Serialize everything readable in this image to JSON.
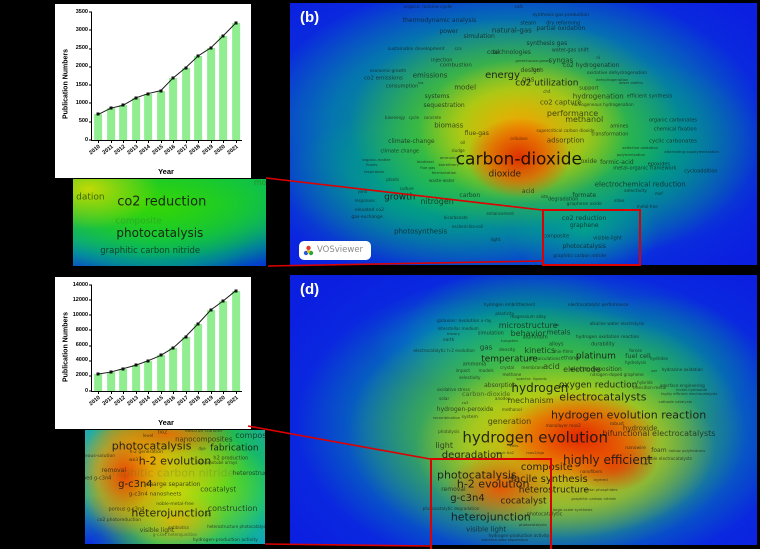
{
  "colors": {
    "bar_fill": "#90ee90",
    "highlight_red": "#dd0000",
    "map_base_blue": "#0b1fe0",
    "inset_bg": "#ffffff"
  },
  "panel_b": {
    "label": "(b)"
  },
  "panel_d": {
    "label": "(d)"
  },
  "vosviewer": {
    "label": "VOSviewer"
  },
  "chart_data": [
    {
      "type": "bar",
      "title": "",
      "ylabel": "Publication Numbers",
      "xlabel": "Year",
      "categories": [
        "2010",
        "2011",
        "2012",
        "2013",
        "2014",
        "2015",
        "2016",
        "2017",
        "2018",
        "2019",
        "2020",
        "2021"
      ],
      "values": [
        700,
        870,
        950,
        1150,
        1270,
        1350,
        1700,
        1980,
        2300,
        2520,
        2850,
        3200
      ],
      "ylim": [
        0,
        3500
      ],
      "ytick": 500,
      "grid": false,
      "overlay_line": true
    },
    {
      "type": "bar",
      "title": "",
      "ylabel": "Publication Numbers",
      "xlabel": "Year",
      "categories": [
        "2010",
        "2011",
        "2012",
        "2013",
        "2014",
        "2015",
        "2016",
        "2017",
        "2018",
        "2019",
        "2020",
        "2021"
      ],
      "values": [
        2250,
        2500,
        2950,
        3400,
        4000,
        4700,
        5700,
        7200,
        8900,
        10700,
        11900,
        13250
      ],
      "ylim": [
        0,
        14000
      ],
      "ytick": 2000,
      "grid": false,
      "overlay_line": true
    }
  ],
  "map_b_words": [
    [
      "organic rankine cycle",
      29.5,
      2,
      4.5
    ],
    [
      "sofc",
      49,
      2,
      4.5
    ],
    [
      "thermodynamic analysis",
      32,
      7,
      6
    ],
    [
      "synthesis gas-production",
      58,
      5,
      4.5
    ],
    [
      "steam",
      51,
      8,
      5
    ],
    [
      "dry reforming",
      58.5,
      8,
      5
    ],
    [
      "power",
      34,
      11,
      6
    ],
    [
      "natural-gas",
      47.5,
      10.5,
      7
    ],
    [
      "partial oxidation",
      58,
      10,
      6
    ],
    [
      "simulation",
      40.5,
      13,
      6
    ],
    [
      "synthesis gas",
      55,
      15.5,
      6
    ],
    [
      "sustainable development",
      27,
      18,
      4.5
    ],
    [
      "ccs",
      36,
      18,
      4.5
    ],
    [
      "coal",
      43.5,
      19,
      6
    ],
    [
      "technologies",
      47.5,
      19,
      6
    ],
    [
      "water-gas shift",
      60,
      18.5,
      5
    ],
    [
      "greenhouse-gases",
      52,
      22,
      3.8
    ],
    [
      "injection",
      32.5,
      22,
      5
    ],
    [
      "ni",
      66,
      21,
      4
    ],
    [
      "combustion",
      35.5,
      24,
      5.5
    ],
    [
      "syngas",
      58,
      22,
      7
    ],
    [
      "economic-growth",
      21,
      26,
      4.2
    ],
    [
      "emissions",
      30,
      28,
      7
    ],
    [
      "energy",
      45.5,
      28,
      10
    ],
    [
      "design",
      51.5,
      26,
      6
    ],
    [
      "fuels",
      53,
      26,
      5
    ],
    [
      "co2 hydrogenation",
      64.5,
      24,
      6
    ],
    [
      "co2 emissions",
      20,
      29,
      5.5
    ],
    [
      "gas",
      51,
      29.5,
      7
    ],
    [
      "oxidative dehydrogenation",
      70,
      27,
      4.5
    ],
    [
      "dehydrogenation",
      69,
      29.5,
      3.8
    ],
    [
      "lower olefins",
      73,
      30.5,
      3.8
    ],
    [
      "consumption",
      24,
      32,
      5
    ],
    [
      "lca",
      28,
      30.5,
      3.8
    ],
    [
      "model",
      37.5,
      32.5,
      7
    ],
    [
      "co2 utilization",
      55,
      31,
      9
    ],
    [
      "ch4",
      55,
      34,
      4
    ],
    [
      "support",
      64,
      33,
      5
    ],
    [
      "hydrogenation",
      66,
      36,
      7
    ],
    [
      "efficient synthesis",
      77,
      36,
      5
    ],
    [
      "systems",
      31.5,
      36,
      6
    ],
    [
      "co2 capture",
      58,
      38,
      7
    ],
    [
      "sequestration",
      33,
      39.5,
      6
    ],
    [
      "homogeneous hydrogenation",
      67,
      39,
      4.2
    ],
    [
      "performance",
      60.5,
      42.5,
      8
    ],
    [
      "bioenergy",
      22.5,
      44,
      4
    ],
    [
      "cycle",
      26.5,
      44,
      4
    ],
    [
      "concrete",
      30.5,
      44,
      4
    ],
    [
      "biomass",
      34,
      47,
      7
    ],
    [
      "methanol",
      63,
      44.5,
      8
    ],
    [
      "flue-gas",
      40,
      50,
      6
    ],
    [
      "supercritical carbon dioxide",
      59,
      49,
      4.2
    ],
    [
      "organic carbonates",
      82,
      45,
      5
    ],
    [
      "chemical fixation",
      82.5,
      48.5,
      5
    ],
    [
      "amines",
      70.5,
      47.5,
      5
    ],
    [
      "transformation",
      68.5,
      50.5,
      5
    ],
    [
      "climate-change",
      26,
      53,
      6
    ],
    [
      "oil",
      37,
      53.5,
      4.2
    ],
    [
      "cellulose",
      49,
      52,
      4,
      0.7,
      "#3a1000"
    ],
    [
      "adsorption",
      59,
      52.5,
      7
    ],
    [
      "cyclic carbonates",
      82,
      53,
      5.5
    ],
    [
      "climate change",
      23.5,
      57,
      5
    ],
    [
      "sludge",
      36,
      56.5,
      4
    ],
    [
      "selective oxidation",
      75,
      55.5,
      3.8
    ],
    [
      "alternating copolymerization",
      86,
      57,
      3.8
    ],
    [
      "polymerization",
      73,
      58,
      3.8
    ],
    [
      "organic-matter",
      18.5,
      60,
      3.8
    ],
    [
      "biodiesel",
      29,
      60.5,
      3.8
    ],
    [
      "ammonia",
      34,
      59,
      3.8
    ],
    [
      "carbon-dioxide",
      49,
      60,
      17,
      0.92,
      "#100800"
    ],
    [
      "fluxes",
      17.5,
      62,
      3.8
    ],
    [
      "flue gas",
      29.5,
      63,
      3.8
    ],
    [
      "biorefinery",
      34,
      62,
      3.8
    ],
    [
      "oxide",
      64,
      60.5,
      6
    ],
    [
      "formic-acid",
      70,
      61,
      6
    ],
    [
      "epoxides",
      79,
      62,
      5
    ],
    [
      "respiration",
      18,
      64.5,
      3.8
    ],
    [
      "fermentation",
      33,
      65,
      3.8
    ],
    [
      "dioxide",
      46,
      65.5,
      9
    ],
    [
      "metal-organic framework",
      76,
      63.5,
      5
    ],
    [
      "cycloaddition",
      88,
      64.5,
      5
    ],
    [
      "plants",
      22,
      67.5,
      4.2
    ],
    [
      "waste-water",
      32.5,
      68,
      4.2
    ],
    [
      "electrochemical reduction",
      75,
      69.5,
      7
    ],
    [
      "culture",
      25,
      71,
      4
    ],
    [
      "yield",
      15.5,
      72,
      4
    ],
    [
      "carbon",
      38.5,
      73.5,
      6
    ],
    [
      "acid",
      51,
      72,
      6
    ],
    [
      "site",
      54.5,
      74,
      4
    ],
    [
      "selectivity",
      74,
      72,
      4.5
    ],
    [
      "mof",
      79,
      73,
      4
    ],
    [
      "responses",
      16,
      75.5,
      4
    ],
    [
      "growth",
      23.5,
      74.5,
      9
    ],
    [
      "nitrogen",
      31.5,
      76,
      8
    ],
    [
      "degradation",
      58.5,
      75,
      5
    ],
    [
      "formate",
      63,
      73.5,
      6
    ],
    [
      "graphene oxide",
      63,
      77,
      4.5
    ],
    [
      "sites",
      70.5,
      76,
      4.5
    ],
    [
      "metal-free",
      76.5,
      78,
      4
    ],
    [
      "elevated co2",
      17,
      79.5,
      4.5
    ],
    [
      "gas-exchange",
      16.5,
      82,
      4.5
    ],
    [
      "bicarbonate",
      35.5,
      82,
      4
    ],
    [
      "enhancement",
      45,
      80.5,
      4
    ],
    [
      "escherichia-coli",
      38,
      85.5,
      4
    ],
    [
      "co2 reduction",
      63,
      82,
      6.5
    ],
    [
      "graphene",
      63,
      85,
      6
    ],
    [
      "photosynthesis",
      28,
      87.5,
      7
    ],
    [
      "composite",
      57,
      89.5,
      5
    ],
    [
      "visible-light",
      68,
      90,
      5
    ],
    [
      "photocatalysis",
      63,
      93,
      6
    ],
    [
      "light",
      44,
      91,
      4.5
    ],
    [
      "graphitic carbon nitride",
      62,
      97,
      4.5
    ]
  ],
  "map_d_words": [
    [
      "hydrogen embrittlement",
      47,
      11,
      4.2
    ],
    [
      "electrocatalytic performance",
      66,
      11,
      4.2
    ],
    [
      "plasticity",
      46,
      14.5,
      4.2
    ],
    [
      "magnesium alloy",
      51,
      15.5,
      4.2
    ],
    [
      "microstructure",
      51,
      19,
      8
    ],
    [
      "behavior",
      51,
      22,
      8
    ],
    [
      "galaxies: evolution",
      36,
      17.5,
      4.5
    ],
    [
      "x-ray",
      42,
      17,
      4.2
    ],
    [
      "interstellar medium",
      36,
      20,
      4.2
    ],
    [
      "history",
      35,
      22,
      3.8
    ],
    [
      "earth",
      34,
      24,
      4.2
    ],
    [
      "simulation",
      43,
      22,
      5
    ],
    [
      "nio",
      57,
      18.5,
      3.8
    ],
    [
      "alkaline water electrolysis",
      70,
      18,
      4.2
    ],
    [
      "metals",
      57.5,
      21.5,
      7
    ],
    [
      "hydrogen oxidation reaction",
      68,
      23.5,
      4.5
    ],
    [
      "tungsten",
      47,
      24.5,
      3.8
    ],
    [
      "aluminum",
      52.5,
      23.5,
      5
    ],
    [
      "durability",
      67,
      26,
      5
    ],
    [
      "gas",
      42,
      27,
      7
    ],
    [
      "electrocatalytic h-2 evolution",
      33,
      28,
      4.2
    ],
    [
      "density",
      46.5,
      28,
      4.5
    ],
    [
      "kinetics",
      53.5,
      28,
      8
    ],
    [
      "alloys",
      57,
      26,
      5
    ],
    [
      "thin-films",
      58.5,
      28.5,
      4.2
    ],
    [
      "forces",
      74,
      28,
      4.2
    ],
    [
      "platinum",
      65.5,
      30.5,
      9
    ],
    [
      "fuel cell",
      74.5,
      30,
      6.5
    ],
    [
      "hydrides",
      79,
      31,
      4.2
    ],
    [
      "temperature",
      47,
      31.5,
      9
    ],
    [
      "dft calculations",
      54.5,
      31,
      4.2
    ],
    [
      "ethanol",
      60,
      31,
      5
    ],
    [
      "hydrolysis",
      74,
      32.5,
      4.2
    ],
    [
      "ammonia",
      39.5,
      33.5,
      5
    ],
    [
      "crystal",
      46.5,
      34.5,
      4.2
    ],
    [
      "membrane",
      52,
      34.5,
      4.2
    ],
    [
      "acid",
      56,
      34,
      8
    ],
    [
      "electrode",
      62.5,
      35,
      8
    ],
    [
      "electrodeposition",
      65.5,
      35,
      6
    ],
    [
      "hydrazine oxidation",
      84,
      35,
      4.2
    ],
    [
      "impact",
      37,
      35.5,
      4.2
    ],
    [
      "models",
      42,
      35.5,
      4.2
    ],
    [
      "methane",
      47.5,
      37,
      4.2
    ],
    [
      "nitrogen-doped graphene",
      70,
      37,
      4.2
    ],
    [
      "oer",
      78,
      35.5,
      3.8
    ],
    [
      "selectivity",
      38.5,
      38,
      4.2
    ],
    [
      "spectra",
      50,
      38.5,
      3.8
    ],
    [
      "ligands",
      53.5,
      38.5,
      3.8
    ],
    [
      "hybrids",
      76,
      40,
      4.2
    ],
    [
      "interface engineering",
      84,
      41,
      4.2
    ],
    [
      "absorption",
      45,
      41,
      6
    ],
    [
      "oxidative stress",
      35,
      42.5,
      4.2
    ],
    [
      "oxygen reduction",
      66,
      41,
      9
    ],
    [
      "transition-metal",
      77,
      42,
      4.2
    ],
    [
      "nickel-hydroxide",
      86,
      42.5,
      3.8
    ],
    [
      "carbon-dioxide",
      42,
      44,
      6.5,
      0.55
    ],
    [
      "hydrogen",
      53.5,
      42,
      12
    ],
    [
      "highly efficient electrocatalysts",
      85.5,
      44.5,
      3.6
    ],
    [
      "electrocatalysts",
      67,
      45,
      11
    ],
    [
      "solar",
      33,
      46,
      4.2
    ],
    [
      "anodes",
      45.5,
      46,
      4.2
    ],
    [
      "mechanism",
      51.5,
      46.5,
      8
    ],
    [
      "cathode catalysts",
      82.5,
      47,
      3.8
    ],
    [
      "co2",
      37.5,
      47.5,
      3.8
    ],
    [
      "hydrogen-peroxide",
      37.5,
      50,
      6
    ],
    [
      "methanol",
      47.5,
      50,
      4.2
    ],
    [
      "hydrogen evolution reaction",
      72.5,
      52,
      11
    ],
    [
      "recombination",
      33.5,
      53,
      3.8
    ],
    [
      "system",
      38.5,
      53,
      4.5
    ],
    [
      "generation",
      47,
      54.5,
      8
    ],
    [
      "monolayer mos2",
      58.5,
      56,
      4.2
    ],
    [
      "robust",
      70,
      55.5,
      4.5
    ],
    [
      "hydroxide",
      75,
      57,
      7
    ],
    [
      "bifunctional electrocatalysts",
      79,
      59,
      8
    ],
    [
      "hydrogen evolution",
      52.5,
      60.5,
      15
    ],
    [
      "photolysis",
      34,
      58,
      4.2
    ],
    [
      "nanowire",
      74,
      64.5,
      4.5
    ],
    [
      "foam",
      79,
      65,
      6
    ],
    [
      "hollow polyhedrons",
      85,
      65,
      3.8
    ],
    [
      "light",
      33,
      63.5,
      8
    ],
    [
      "cells",
      48,
      63.5,
      3.8
    ],
    [
      "black tio2",
      46,
      66,
      3.8
    ],
    [
      "mos2/rgo",
      52.5,
      66,
      3.8
    ],
    [
      "highly efficient",
      68,
      68.5,
      12
    ],
    [
      "degradation",
      39,
      67,
      10
    ],
    [
      "stable electrocatalysts",
      81,
      68,
      4.2
    ],
    [
      "cop",
      76,
      70,
      3.8
    ],
    [
      "composite",
      55,
      71.5,
      10
    ],
    [
      "nanofibers",
      64.5,
      73,
      4.2
    ],
    [
      "photocatalysis",
      40,
      74,
      11
    ],
    [
      "dyes",
      47,
      75,
      3.8
    ],
    [
      "facile synthesis",
      55.5,
      76,
      10
    ],
    [
      "h-2 evolution",
      43.5,
      77.5,
      11
    ],
    [
      "removal",
      35,
      79.5,
      6
    ],
    [
      "heterostructure",
      56.5,
      80,
      9
    ],
    [
      "layered",
      66.5,
      76,
      3.8
    ],
    [
      "metal phosphides",
      66.5,
      79.5,
      3.8
    ],
    [
      "g-c3n4",
      38,
      83,
      10
    ],
    [
      "cocatalyst",
      50,
      84,
      9
    ],
    [
      "graphitic carbon nitride",
      65,
      83,
      3.8
    ],
    [
      "photocatalytic degradation",
      34.5,
      86.5,
      4.2
    ],
    [
      "large-scale synthesis",
      60.5,
      87,
      3.8
    ],
    [
      "heterojunction",
      43,
      89.5,
      11
    ],
    [
      "photocatalytic",
      54.5,
      89,
      5
    ],
    [
      "visible light",
      42,
      94.5,
      7
    ],
    [
      "photocatalysts",
      52,
      92.5,
      3.8
    ],
    [
      "hydrogen-production activity",
      49,
      96.5,
      4.2
    ],
    [
      "electron-hole separation",
      46,
      98,
      3.8
    ]
  ],
  "frag_b_words": [
    [
      "dation",
      9,
      22,
      9,
      0.75,
      "#243c00"
    ],
    [
      "mo",
      97,
      5,
      8,
      0.5,
      "#4a5a00"
    ],
    [
      "co2 reduction",
      46,
      27,
      13
    ],
    [
      "composite",
      34,
      49,
      9,
      0.4,
      "#2a7a30"
    ],
    [
      "photocatalysis",
      45,
      62,
      12
    ],
    [
      "graphitic carbon nitride",
      40,
      83,
      8.5
    ]
  ],
  "frag_d_words": [
    [
      "tio2",
      43,
      3,
      5
    ],
    [
      "electron transfer",
      66,
      2,
      4.5
    ],
    [
      "composite",
      95,
      5,
      8
    ],
    [
      "level",
      35,
      6,
      4.5
    ],
    [
      "nanocomposites",
      66,
      9,
      7
    ],
    [
      "photocatalysis",
      37,
      14,
      11
    ],
    [
      "fabrication",
      83,
      17,
      9
    ],
    [
      "dye",
      65,
      17,
      4
    ],
    [
      "h-2 generation",
      34,
      20,
      4.5
    ],
    [
      "aqueous-solution",
      6,
      24,
      4.5
    ],
    [
      "wo3",
      27,
      27,
      4.5
    ],
    [
      "h-2 evolution",
      50,
      27,
      11
    ],
    [
      "h2 production",
      81,
      25,
      5
    ],
    [
      "tio2 nanotube arrays",
      73,
      29,
      4
    ],
    [
      "removal",
      16,
      36,
      6
    ],
    [
      "graphitic carbon nitride",
      47,
      38,
      11,
      0.3,
      "#5a7a20"
    ],
    [
      "heterostructure",
      95,
      39,
      6
    ],
    [
      "doped g-c3n4",
      5,
      43,
      5
    ],
    [
      "g-c3n4",
      28,
      48,
      10
    ],
    [
      "charge separation",
      49,
      48,
      6
    ],
    [
      "cocatalyst",
      74,
      53,
      7
    ],
    [
      "g-c3n4 nanosheets",
      39,
      57,
      5.5
    ],
    [
      "noble-metal-free",
      50,
      66,
      4.5
    ],
    [
      "porous g-c3n4",
      23,
      70,
      5
    ],
    [
      "heterojunction",
      48,
      73,
      11
    ],
    [
      "2d",
      68,
      75,
      4.5
    ],
    [
      "construction",
      82,
      69,
      8
    ],
    [
      "co2 photoreduction",
      19,
      80,
      4.5
    ],
    [
      "visible light",
      40,
      89,
      6
    ],
    [
      "antibiotics",
      52,
      86,
      4
    ],
    [
      "heterostructure photocatalysts",
      85,
      85,
      4
    ],
    [
      "g-c3n4 heterojunction",
      50,
      92,
      4,
      0.5
    ],
    [
      "hydrogen-production activity",
      78,
      97,
      4.5
    ]
  ]
}
